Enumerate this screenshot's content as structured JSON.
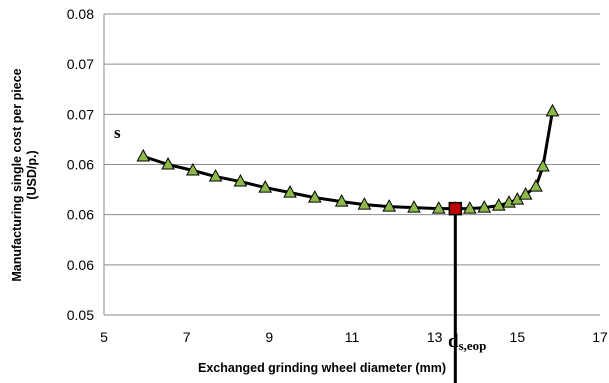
{
  "chart_data": {
    "type": "line",
    "xlabel": "Exchanged  grinding  wheel diameter (mm)",
    "ylabel_line1": "Manufacturing  single cost  per piece",
    "ylabel_line2": "(USD/p.)",
    "xlim": [
      5,
      17
    ],
    "ylim": [
      0.05,
      0.08
    ],
    "x_ticks": [
      5,
      7,
      9,
      11,
      13,
      15,
      17
    ],
    "x_tick_labels": [
      "5",
      "7",
      "9",
      "11",
      "13",
      "15",
      "17"
    ],
    "y_ticks": [
      0.05,
      0.055,
      0.06,
      0.065,
      0.07,
      0.075,
      0.08
    ],
    "y_tick_labels": [
      "0.05",
      "0.06",
      "0.06",
      "0.06",
      "0.07",
      "0.07",
      "0.08"
    ],
    "grid": "horizontal",
    "series": [
      {
        "marker": "triangle",
        "marker_color": "#8db94a",
        "line_color": "#000000",
        "x": [
          5.95,
          6.55,
          7.15,
          7.7,
          8.3,
          8.9,
          9.5,
          10.1,
          10.75,
          11.3,
          11.9,
          12.5,
          13.1,
          13.5,
          13.85,
          14.2,
          14.55,
          14.8,
          15.0,
          15.2,
          15.45,
          15.62,
          15.85
        ],
        "y": [
          0.0658,
          0.065,
          0.0644,
          0.0638,
          0.0633,
          0.0627,
          0.0622,
          0.0617,
          0.0613,
          0.061,
          0.0608,
          0.0607,
          0.0606,
          0.0606,
          0.0606,
          0.0607,
          0.0609,
          0.0612,
          0.0615,
          0.062,
          0.0628,
          0.0648,
          0.0703
        ]
      }
    ],
    "optimum": {
      "x": 13.5,
      "y": 0.0606,
      "marker_color": "#c00000"
    },
    "annotation_s": "s",
    "annotation_d_main": "d",
    "annotation_d_sub": "s,eop"
  }
}
